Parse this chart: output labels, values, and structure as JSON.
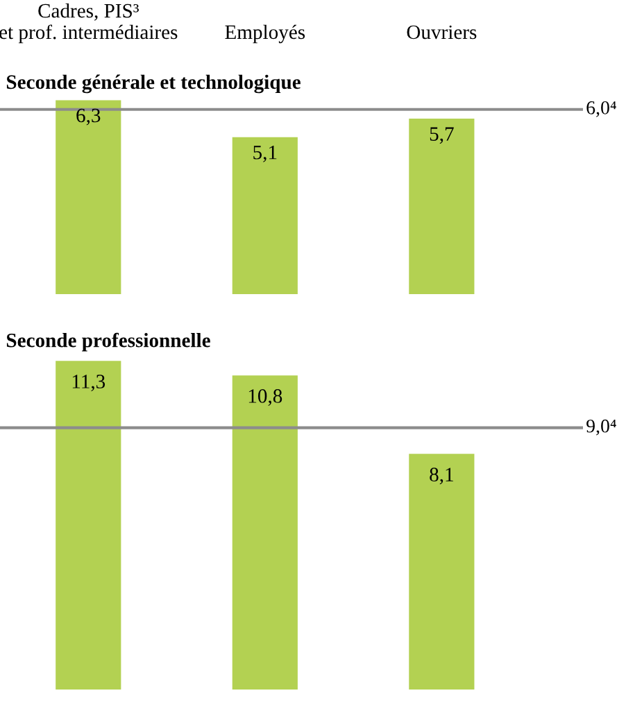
{
  "chart_data": [
    {
      "type": "bar",
      "title": "Seconde générale et technologique",
      "categories": [
        "Cadres, PIS³\net prof. intermédiaires",
        "Employés",
        "Ouvriers"
      ],
      "values": [
        6.3,
        5.1,
        5.7
      ],
      "value_labels": [
        "6,3",
        "5,1",
        "5,7"
      ],
      "color": "#b3d152",
      "ylim": [
        0,
        6.4
      ],
      "tick_labels": "x",
      "ref_lines": [
        {
          "axis": "y",
          "value": 6.0,
          "label": "6,0⁴",
          "color": "#8c8c8c"
        }
      ]
    },
    {
      "type": "bar",
      "title": "Seconde professionnelle",
      "values": [
        11.3,
        10.8,
        8.1
      ],
      "value_labels": [
        "11,3",
        "10,8",
        "8,1"
      ],
      "color": "#b3d152",
      "ylim": [
        0,
        11.4
      ],
      "tick_labels": false,
      "ref_lines": [
        {
          "axis": "y",
          "value": 9.0,
          "label": "9,0⁴",
          "color": "#8c8c8c"
        }
      ]
    }
  ]
}
